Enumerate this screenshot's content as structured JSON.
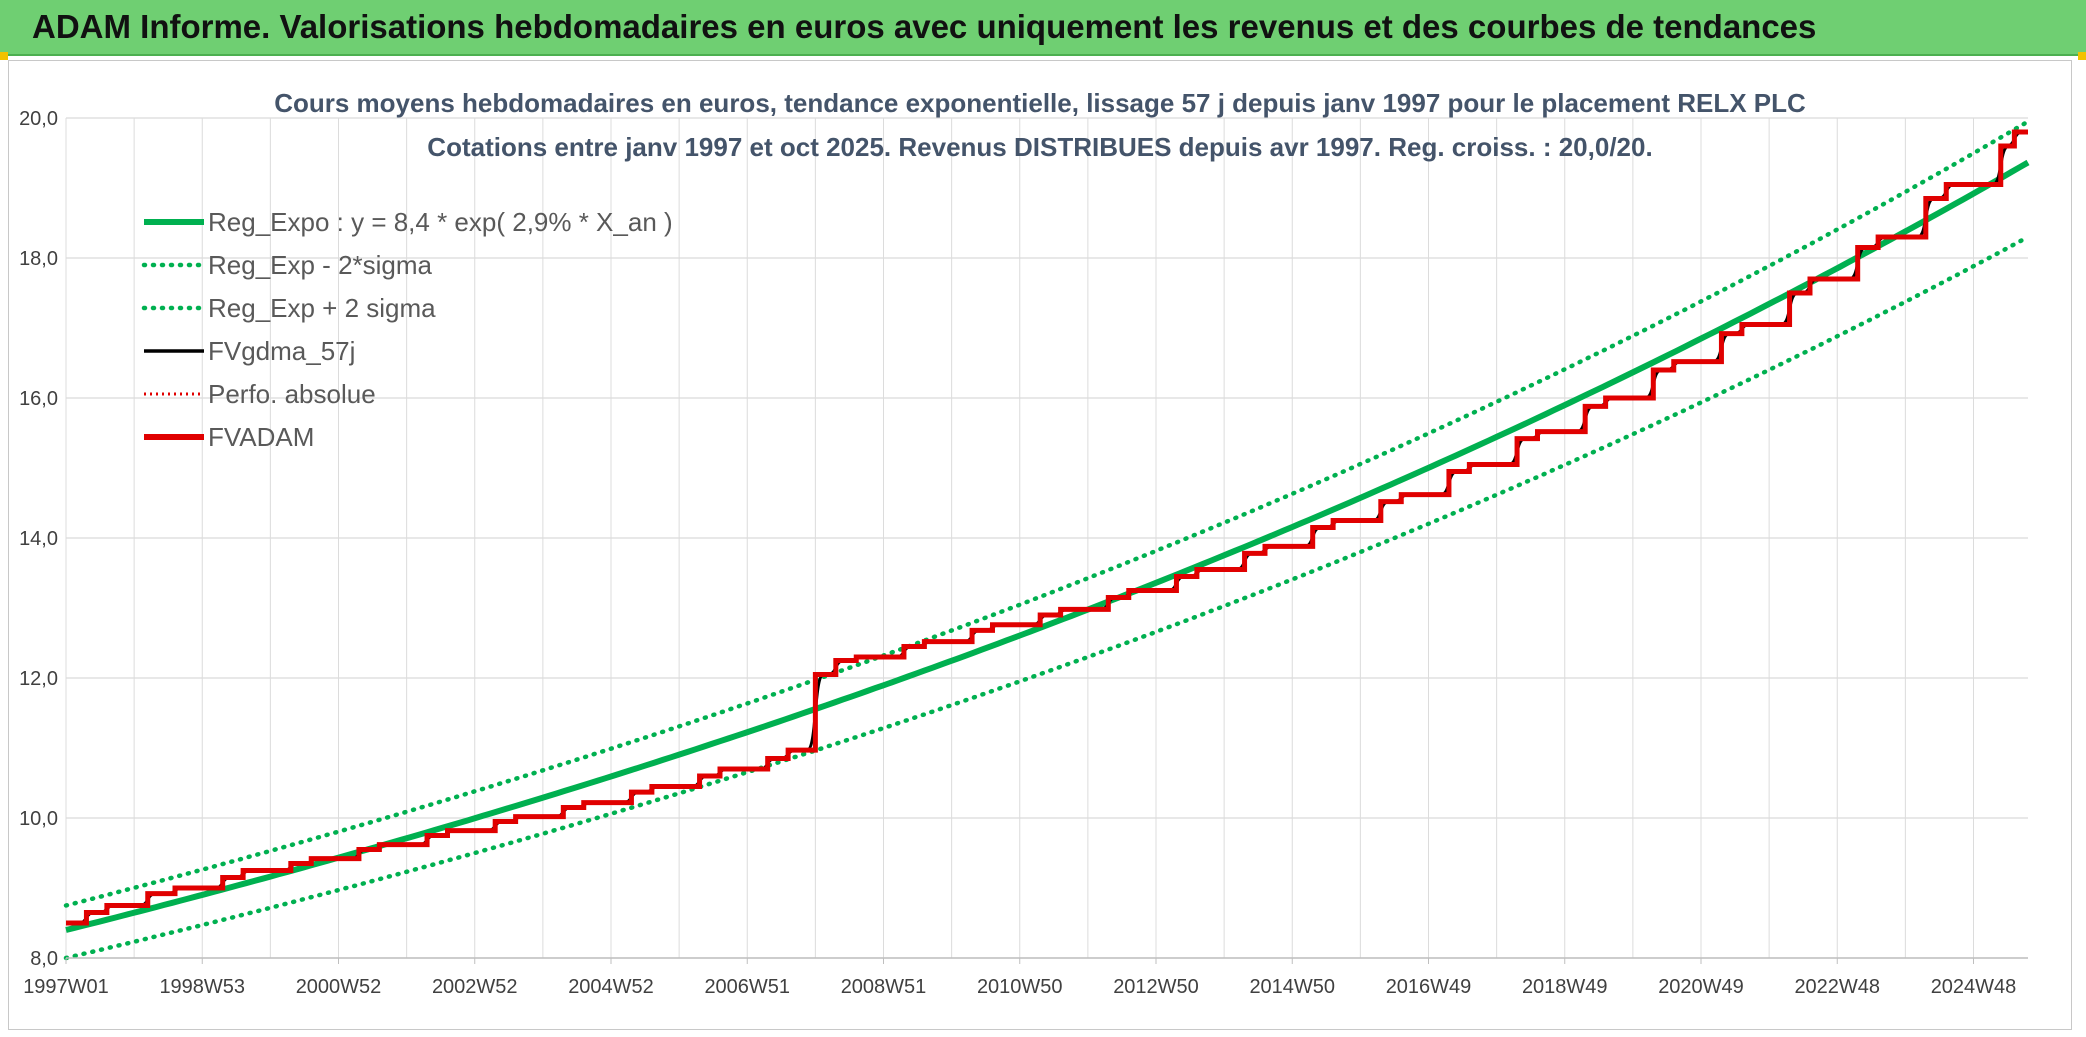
{
  "header": {
    "title": "ADAM Informe. Valorisations hebdomadaires en euros avec uniquement les revenus et des courbes de tendances"
  },
  "colors": {
    "banner": "#6fcf72",
    "regression": "#00b050",
    "fvgdma": "#000000",
    "fvadam": "#e00000",
    "title_text": "#44546a"
  },
  "chart_data": {
    "type": "line",
    "title_lines": [
      "Cours moyens hebdomadaires en euros, tendance exponentielle, lissage 57 j depuis janv 1997 pour le placement RELX PLC",
      "Cotations entre janv 1997 et oct 2025. Revenus DISTRIBUES depuis avr 1997. Reg. croiss. : 20,0/20."
    ],
    "x_ticks": [
      "1997W01",
      "1998W53",
      "2000W52",
      "2002W52",
      "2004W52",
      "2006W51",
      "2008W51",
      "2010W50",
      "2012W50",
      "2014W50",
      "2016W49",
      "2018W49",
      "2020W49",
      "2022W48",
      "2024W48"
    ],
    "x_tick_years": [
      1997.0,
      1999.0,
      2001.0,
      2003.0,
      2005.0,
      2007.0,
      2009.0,
      2011.0,
      2013.0,
      2015.0,
      2017.0,
      2019.0,
      2021.0,
      2023.0,
      2025.0
    ],
    "x_range_years": [
      1997.0,
      2025.8
    ],
    "ylim": [
      8.0,
      20.0
    ],
    "y_ticks": [
      "8,0",
      "10,0",
      "12,0",
      "14,0",
      "16,0",
      "18,0",
      "20,0"
    ],
    "y_tick_values": [
      8,
      10,
      12,
      14,
      16,
      18,
      20
    ],
    "grid": true,
    "legend_position": "top-left",
    "legend": [
      "Reg_Expo : y = 8,4 * exp( 2,9% *  X_an )",
      "Reg_Exp - 2*sigma",
      "Reg_Exp + 2 sigma",
      "FVgdma_57j",
      "Perfo. absolue",
      "FVADAM"
    ],
    "regression": {
      "a": 8.4,
      "rate": 0.029,
      "start_year": 1997.0
    },
    "sigma_bands": {
      "lower": [
        8.0,
        18.3
      ],
      "upper": [
        8.75,
        19.95
      ]
    },
    "fvadam_steps": [
      {
        "year": 1997.0,
        "value": 8.5
      },
      {
        "year": 1997.3,
        "value": 8.65
      },
      {
        "year": 1997.6,
        "value": 8.75
      },
      {
        "year": 1998.2,
        "value": 8.92
      },
      {
        "year": 1998.6,
        "value": 9.0
      },
      {
        "year": 1999.3,
        "value": 9.15
      },
      {
        "year": 1999.6,
        "value": 9.25
      },
      {
        "year": 2000.3,
        "value": 9.35
      },
      {
        "year": 2000.6,
        "value": 9.42
      },
      {
        "year": 2001.3,
        "value": 9.55
      },
      {
        "year": 2001.6,
        "value": 9.62
      },
      {
        "year": 2002.3,
        "value": 9.75
      },
      {
        "year": 2002.6,
        "value": 9.82
      },
      {
        "year": 2003.3,
        "value": 9.95
      },
      {
        "year": 2003.6,
        "value": 10.02
      },
      {
        "year": 2004.3,
        "value": 10.15
      },
      {
        "year": 2004.6,
        "value": 10.22
      },
      {
        "year": 2005.3,
        "value": 10.37
      },
      {
        "year": 2005.6,
        "value": 10.45
      },
      {
        "year": 2006.3,
        "value": 10.6
      },
      {
        "year": 2006.6,
        "value": 10.7
      },
      {
        "year": 2007.3,
        "value": 10.85
      },
      {
        "year": 2007.6,
        "value": 10.97
      },
      {
        "year": 2008.0,
        "value": 12.05
      },
      {
        "year": 2008.3,
        "value": 12.25
      },
      {
        "year": 2008.6,
        "value": 12.3
      },
      {
        "year": 2009.3,
        "value": 12.45
      },
      {
        "year": 2009.6,
        "value": 12.52
      },
      {
        "year": 2010.3,
        "value": 12.68
      },
      {
        "year": 2010.6,
        "value": 12.76
      },
      {
        "year": 2011.3,
        "value": 12.9
      },
      {
        "year": 2011.6,
        "value": 12.98
      },
      {
        "year": 2012.3,
        "value": 13.15
      },
      {
        "year": 2012.6,
        "value": 13.25
      },
      {
        "year": 2013.3,
        "value": 13.45
      },
      {
        "year": 2013.6,
        "value": 13.55
      },
      {
        "year": 2014.3,
        "value": 13.78
      },
      {
        "year": 2014.6,
        "value": 13.88
      },
      {
        "year": 2015.3,
        "value": 14.15
      },
      {
        "year": 2015.6,
        "value": 14.25
      },
      {
        "year": 2016.3,
        "value": 14.52
      },
      {
        "year": 2016.6,
        "value": 14.62
      },
      {
        "year": 2017.3,
        "value": 14.95
      },
      {
        "year": 2017.6,
        "value": 15.05
      },
      {
        "year": 2018.3,
        "value": 15.42
      },
      {
        "year": 2018.6,
        "value": 15.52
      },
      {
        "year": 2019.3,
        "value": 15.88
      },
      {
        "year": 2019.6,
        "value": 16.0
      },
      {
        "year": 2020.3,
        "value": 16.4
      },
      {
        "year": 2020.6,
        "value": 16.52
      },
      {
        "year": 2021.3,
        "value": 16.92
      },
      {
        "year": 2021.6,
        "value": 17.05
      },
      {
        "year": 2022.3,
        "value": 17.5
      },
      {
        "year": 2022.6,
        "value": 17.7
      },
      {
        "year": 2023.3,
        "value": 18.15
      },
      {
        "year": 2023.6,
        "value": 18.3
      },
      {
        "year": 2024.3,
        "value": 18.85
      },
      {
        "year": 2024.6,
        "value": 19.05
      },
      {
        "year": 2025.4,
        "value": 19.6
      },
      {
        "year": 2025.6,
        "value": 19.8
      }
    ]
  }
}
